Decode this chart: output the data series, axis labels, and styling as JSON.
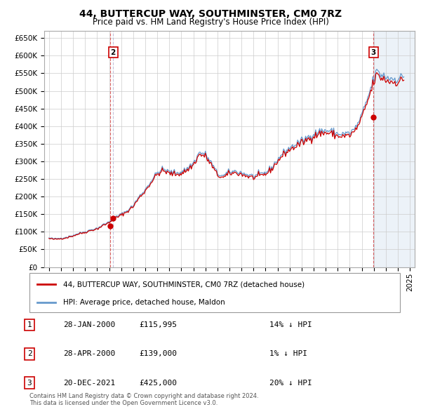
{
  "title": "44, BUTTERCUP WAY, SOUTHMINSTER, CM0 7RZ",
  "subtitle": "Price paid vs. HM Land Registry's House Price Index (HPI)",
  "ylabel_ticks": [
    "£0",
    "£50K",
    "£100K",
    "£150K",
    "£200K",
    "£250K",
    "£300K",
    "£350K",
    "£400K",
    "£450K",
    "£500K",
    "£550K",
    "£600K",
    "£650K"
  ],
  "ytick_values": [
    0,
    50000,
    100000,
    150000,
    200000,
    250000,
    300000,
    350000,
    400000,
    450000,
    500000,
    550000,
    600000,
    650000
  ],
  "line_color_red": "#cc0000",
  "line_color_blue": "#6699cc",
  "background_color": "#ffffff",
  "grid_color": "#cccccc",
  "xlim_left": 1994.6,
  "xlim_right": 2025.4,
  "ylim": [
    0,
    670000
  ],
  "sale1_year": 2000.08,
  "sale1_price": 115995,
  "sale2_year": 2000.33,
  "sale2_price": 139000,
  "sale3_year": 2021.97,
  "sale3_price": 425000,
  "legend_line1": "44, BUTTERCUP WAY, SOUTHMINSTER, CM0 7RZ (detached house)",
  "legend_line2": "HPI: Average price, detached house, Maldon",
  "table_data": [
    [
      "1",
      "28-JAN-2000",
      "£115,995",
      "14% ↓ HPI"
    ],
    [
      "2",
      "28-APR-2000",
      "£139,000",
      "1% ↓ HPI"
    ],
    [
      "3",
      "20-DEC-2021",
      "£425,000",
      "20% ↓ HPI"
    ]
  ],
  "footnote": "Contains HM Land Registry data © Crown copyright and database right 2024.\nThis data is licensed under the Open Government Licence v3.0.",
  "xtick_years": [
    1995,
    1996,
    1997,
    1998,
    1999,
    2000,
    2001,
    2002,
    2003,
    2004,
    2005,
    2006,
    2007,
    2008,
    2009,
    2010,
    2011,
    2012,
    2013,
    2014,
    2015,
    2016,
    2017,
    2018,
    2019,
    2020,
    2021,
    2022,
    2023,
    2024,
    2025
  ]
}
